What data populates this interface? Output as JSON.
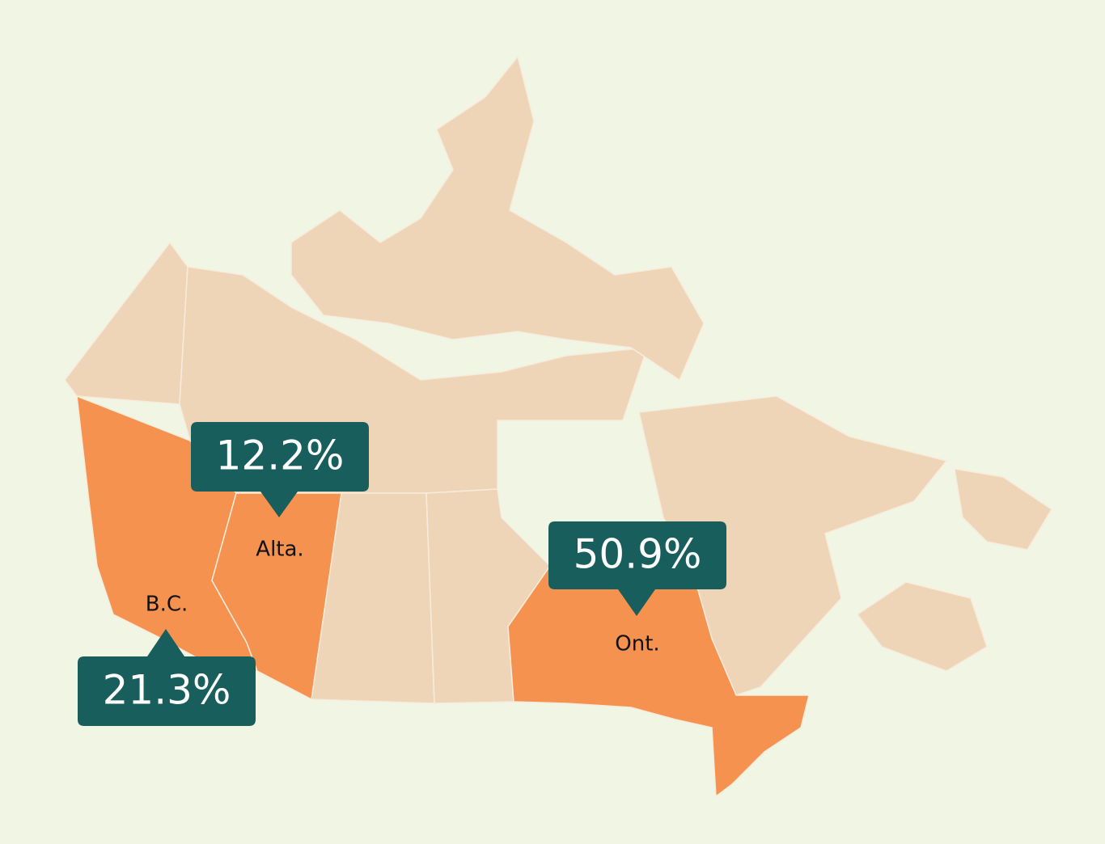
{
  "regions": [
    {
      "name": "B.C.",
      "value": 21.3,
      "value_label": "21.3%"
    },
    {
      "name": "Alta.",
      "value": 12.2,
      "value_label": "12.2%"
    },
    {
      "name": "Ont.",
      "value": 50.9,
      "value_label": "50.9%"
    }
  ]
}
